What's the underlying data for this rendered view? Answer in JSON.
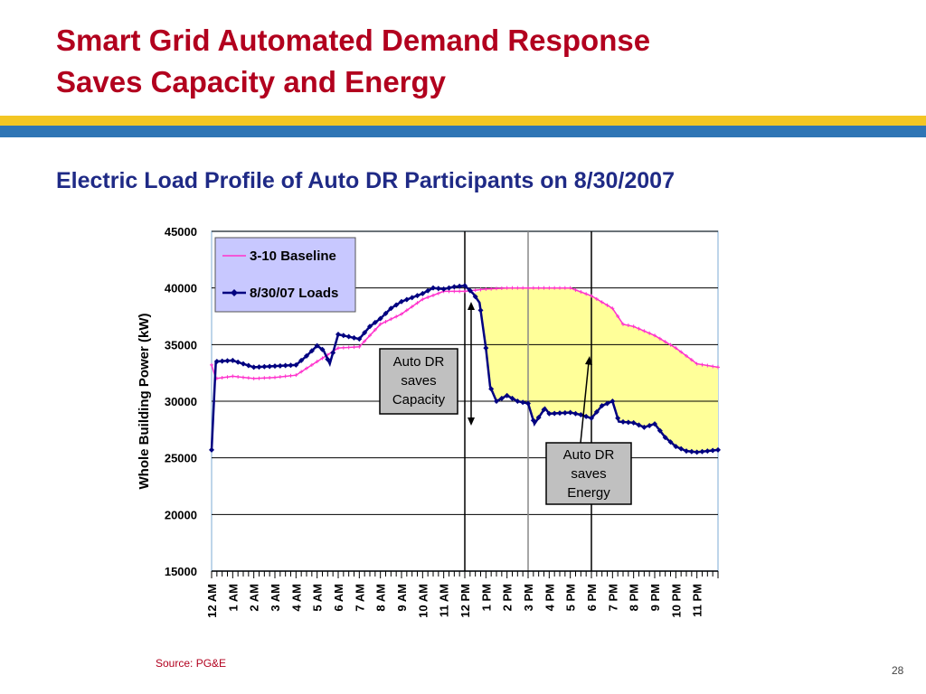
{
  "slide": {
    "title_line1": "Smart Grid Automated Demand Response",
    "title_line2": "Saves Capacity and Energy",
    "subtitle": "Electric Load Profile of Auto DR Participants on 8/30/2007",
    "source": "Source: PG&E",
    "page_number": "28"
  },
  "colors": {
    "title": "#b2001e",
    "subtitle": "#1f2a86",
    "band_yellow": "#f3c623",
    "band_blue": "#2f75b5",
    "baseline": "#ff33cc",
    "loads": "#000080",
    "savings_fill": "#ffff99",
    "legend_bg": "#c8c8ff",
    "callout_bg": "#c0c0c0"
  },
  "chart_data": {
    "type": "line",
    "ylabel": "Whole Building Power (kW)",
    "ylim": [
      15000,
      45000
    ],
    "yticks": [
      "15000",
      "20000",
      "25000",
      "30000",
      "35000",
      "40000",
      "45000"
    ],
    "categories": [
      "12 AM",
      "1 AM",
      "2 AM",
      "3 AM",
      "4 AM",
      "5 AM",
      "6 AM",
      "7 AM",
      "8 AM",
      "9 AM",
      "10 AM",
      "11 AM",
      "12 PM",
      "1 PM",
      "2 PM",
      "3 PM",
      "4 PM",
      "5 PM",
      "6 PM",
      "7 PM",
      "8 PM",
      "9 PM",
      "10 PM",
      "11 PM"
    ],
    "event_markers_hours": [
      12,
      15,
      18
    ],
    "legend": {
      "baseline": "3-10 Baseline",
      "loads": "8/30/07 Loads"
    },
    "series": [
      {
        "name": "3-10 Baseline",
        "points": [
          [
            0,
            33200
          ],
          [
            0.2,
            32000
          ],
          [
            1,
            32200
          ],
          [
            2,
            32000
          ],
          [
            3,
            32100
          ],
          [
            4,
            32300
          ],
          [
            5,
            33500
          ],
          [
            6,
            34700
          ],
          [
            7,
            34800
          ],
          [
            8,
            36800
          ],
          [
            9,
            37700
          ],
          [
            10,
            39000
          ],
          [
            11,
            39700
          ],
          [
            12,
            39700
          ],
          [
            13,
            39900
          ],
          [
            14,
            40000
          ],
          [
            15,
            40000
          ],
          [
            16,
            40000
          ],
          [
            17,
            40000
          ],
          [
            18,
            39300
          ],
          [
            19,
            38200
          ],
          [
            19.5,
            36800
          ],
          [
            20,
            36600
          ],
          [
            21,
            35800
          ],
          [
            22,
            34700
          ],
          [
            23,
            33300
          ],
          [
            24,
            33000
          ]
        ]
      },
      {
        "name": "8/30/07 Loads",
        "points": [
          [
            0,
            25700
          ],
          [
            0.2,
            33500
          ],
          [
            1,
            33600
          ],
          [
            2,
            33000
          ],
          [
            3,
            33100
          ],
          [
            4,
            33200
          ],
          [
            4.5,
            34000
          ],
          [
            5,
            34900
          ],
          [
            5.3,
            34500
          ],
          [
            5.6,
            33300
          ],
          [
            6,
            35900
          ],
          [
            7,
            35500
          ],
          [
            7.5,
            36600
          ],
          [
            8,
            37300
          ],
          [
            8.5,
            38200
          ],
          [
            9,
            38800
          ],
          [
            10,
            39500
          ],
          [
            10.5,
            40000
          ],
          [
            11,
            39900
          ],
          [
            11.5,
            40100
          ],
          [
            12,
            40200
          ],
          [
            12.4,
            39500
          ],
          [
            12.7,
            38700
          ],
          [
            13,
            34700
          ],
          [
            13.2,
            31300
          ],
          [
            13.5,
            30000
          ],
          [
            14,
            30500
          ],
          [
            14.5,
            30000
          ],
          [
            15,
            29800
          ],
          [
            15.3,
            28000
          ],
          [
            15.8,
            29400
          ],
          [
            16,
            28900
          ],
          [
            17,
            29000
          ],
          [
            17.5,
            28800
          ],
          [
            18,
            28500
          ],
          [
            18.5,
            29600
          ],
          [
            19,
            30000
          ],
          [
            19.3,
            28200
          ],
          [
            20,
            28100
          ],
          [
            20.5,
            27700
          ],
          [
            21,
            28000
          ],
          [
            21.5,
            26800
          ],
          [
            22,
            26000
          ],
          [
            22.5,
            25600
          ],
          [
            23,
            25500
          ],
          [
            24,
            25700
          ]
        ]
      }
    ],
    "annotations": [
      "Auto DR saves Capacity",
      "Auto DR saves Energy"
    ]
  },
  "callouts": {
    "capacity": [
      "Auto DR",
      "saves",
      "Capacity"
    ],
    "energy": [
      "Auto DR",
      "saves",
      "Energy"
    ]
  }
}
